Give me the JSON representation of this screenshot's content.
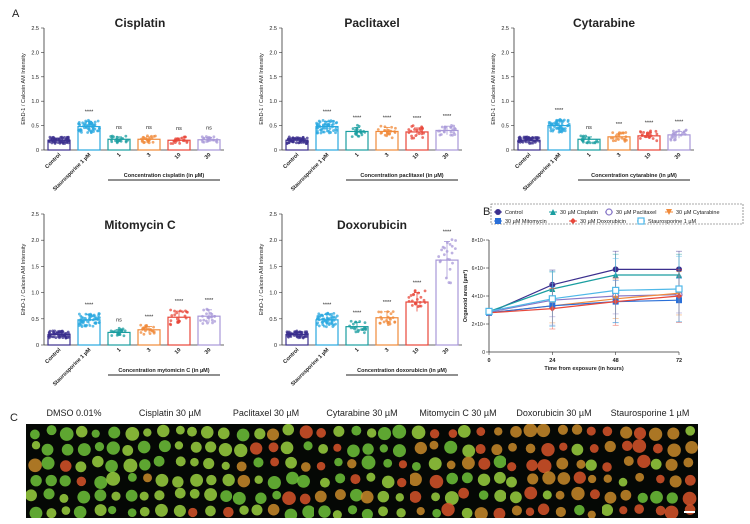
{
  "panel_labels": {
    "A": "A",
    "B": "B",
    "C": "C"
  },
  "chart_data": [
    {
      "type": "bar",
      "title": "Cisplatin",
      "ylabel": "EthD-1 / Calcein AM Intensity",
      "ylim": [
        0,
        2.5
      ],
      "yticks": [
        "0",
        "0.5",
        "1.0",
        "1.5",
        "2.0",
        "2.5"
      ],
      "categories": [
        "Control",
        "Staurosporine 1 µM",
        "1",
        "3",
        "10",
        "30"
      ],
      "values": [
        0.2,
        0.48,
        0.22,
        0.22,
        0.2,
        0.21
      ],
      "colors": [
        "#3b2f8e",
        "#29a8e0",
        "#1a9ea0",
        "#f08a3a",
        "#e8473a",
        "#a898d8"
      ],
      "significance": [
        "",
        "****",
        "ns",
        "ns",
        "ns",
        "ns"
      ],
      "concentration_label": "Concentration cisplatin (in µM)"
    },
    {
      "type": "bar",
      "title": "Paclitaxel",
      "ylabel": "EthD-1 / Calcein AM Intensity",
      "ylim": [
        0,
        2.5
      ],
      "yticks": [
        "0",
        "0.5",
        "1.0",
        "1.5",
        "2.0",
        "2.5"
      ],
      "categories": [
        "Control",
        "Staurosporine 1 µM",
        "1",
        "3",
        "10",
        "30"
      ],
      "values": [
        0.2,
        0.48,
        0.38,
        0.38,
        0.37,
        0.4
      ],
      "colors": [
        "#3b2f8e",
        "#29a8e0",
        "#1a9ea0",
        "#f08a3a",
        "#e8473a",
        "#a898d8"
      ],
      "significance": [
        "",
        "****",
        "****",
        "****",
        "****",
        "****"
      ],
      "concentration_label": "Concentration paclitaxel (in µM)"
    },
    {
      "type": "bar",
      "title": "Cytarabine",
      "ylabel": "EthD-1 / Calcein AM Intensity",
      "ylim": [
        0,
        2.5
      ],
      "yticks": [
        "0",
        "0.5",
        "1.0",
        "1.5",
        "2.0",
        "2.5"
      ],
      "categories": [
        "Control",
        "Staurosporine 1 µM",
        "1",
        "3",
        "10",
        "30"
      ],
      "values": [
        0.2,
        0.5,
        0.22,
        0.27,
        0.29,
        0.31
      ],
      "colors": [
        "#3b2f8e",
        "#29a8e0",
        "#1a9ea0",
        "#f08a3a",
        "#e8473a",
        "#a898d8"
      ],
      "significance": [
        "",
        "****",
        "ns",
        "***",
        "****",
        "****"
      ],
      "concentration_label": "Concentration cytarabine (in µM)"
    },
    {
      "type": "bar",
      "title": "Mitomycin C",
      "ylabel": "EthD-1 / Calcein AM Intensity",
      "ylim": [
        0,
        2.5
      ],
      "yticks": [
        "0",
        "0.5",
        "1.0",
        "1.5",
        "2.0",
        "2.5"
      ],
      "categories": [
        "Control",
        "Staurosporine 1 µM",
        "1",
        "3",
        "10",
        "30"
      ],
      "values": [
        0.2,
        0.48,
        0.24,
        0.29,
        0.53,
        0.55
      ],
      "colors": [
        "#3b2f8e",
        "#29a8e0",
        "#1a9ea0",
        "#f08a3a",
        "#e8473a",
        "#a898d8"
      ],
      "significance": [
        "",
        "****",
        "ns",
        "****",
        "****",
        "****"
      ],
      "concentration_label": "Concentration mytomicin C (in µM)"
    },
    {
      "type": "bar",
      "title": "Doxorubicin",
      "ylabel": "EthD-1 / Calcein AM Intensity",
      "ylim": [
        0,
        2.5
      ],
      "yticks": [
        "0",
        "0.5",
        "1.0",
        "1.5",
        "2.0",
        "2.5"
      ],
      "categories": [
        "Control",
        "Staurosporine 1 µM",
        "1",
        "3",
        "10",
        "30"
      ],
      "values": [
        0.2,
        0.48,
        0.35,
        0.52,
        0.82,
        1.62
      ],
      "colors": [
        "#3b2f8e",
        "#29a8e0",
        "#1a9ea0",
        "#f08a3a",
        "#e8473a",
        "#a898d8"
      ],
      "significance": [
        "",
        "****",
        "****",
        "****",
        "****",
        "****"
      ],
      "concentration_label": "Concentration doxorubicin (in µM)"
    },
    {
      "type": "line",
      "xlabel": "Time from exposure (in hours)",
      "ylabel": "Organoid area (µm²)",
      "x": [
        0,
        24,
        48,
        72
      ],
      "xticks": [
        "0",
        "24",
        "48",
        "72"
      ],
      "ylim": [
        0,
        80000
      ],
      "yticks": [
        "0",
        "2×10⁴",
        "4×10⁴",
        "6×10⁴",
        "8×10⁴"
      ],
      "series": [
        {
          "name": "Control",
          "color": "#3b2f8e",
          "marker": "circle",
          "values": [
            28000,
            48000,
            59000,
            59000
          ]
        },
        {
          "name": "30 µM Cisplatin",
          "color": "#1a9ea0",
          "marker": "triangle",
          "values": [
            29000,
            45000,
            55000,
            55000
          ]
        },
        {
          "name": "30 µM Paclitaxel",
          "color": "#8878c8",
          "marker": "circle-open",
          "values": [
            28500,
            37000,
            40000,
            41000
          ]
        },
        {
          "name": "30 µM Cytarabine",
          "color": "#f08a3a",
          "marker": "triangle-down",
          "values": [
            28000,
            33000,
            38000,
            42000
          ]
        },
        {
          "name": "30 µM Mitomycin",
          "color": "#2a6fd8",
          "marker": "square",
          "values": [
            28000,
            33000,
            36000,
            37000
          ]
        },
        {
          "name": "30 µM Doxorubicin",
          "color": "#e8473a",
          "marker": "diamond",
          "values": [
            28000,
            31000,
            36000,
            40000
          ]
        },
        {
          "name": "Staurosporine 1 µM",
          "color": "#4fb8e8",
          "marker": "square-open",
          "values": [
            29000,
            38000,
            44000,
            45000
          ]
        }
      ]
    }
  ],
  "micrographs": [
    {
      "label": "DMSO 0.01%",
      "red_ratio": 0.05
    },
    {
      "label": "Cisplatin 30 µM",
      "red_ratio": 0.1
    },
    {
      "label": "Paclitaxel 30 µM",
      "red_ratio": 0.3
    },
    {
      "label": "Cytarabine 30 µM",
      "red_ratio": 0.35
    },
    {
      "label": "Mitomycin C 30 µM",
      "red_ratio": 0.6
    },
    {
      "label": "Doxorubicin 30 µM",
      "red_ratio": 0.75
    },
    {
      "label": "Staurosporine 1 µM",
      "red_ratio": 0.7
    }
  ]
}
